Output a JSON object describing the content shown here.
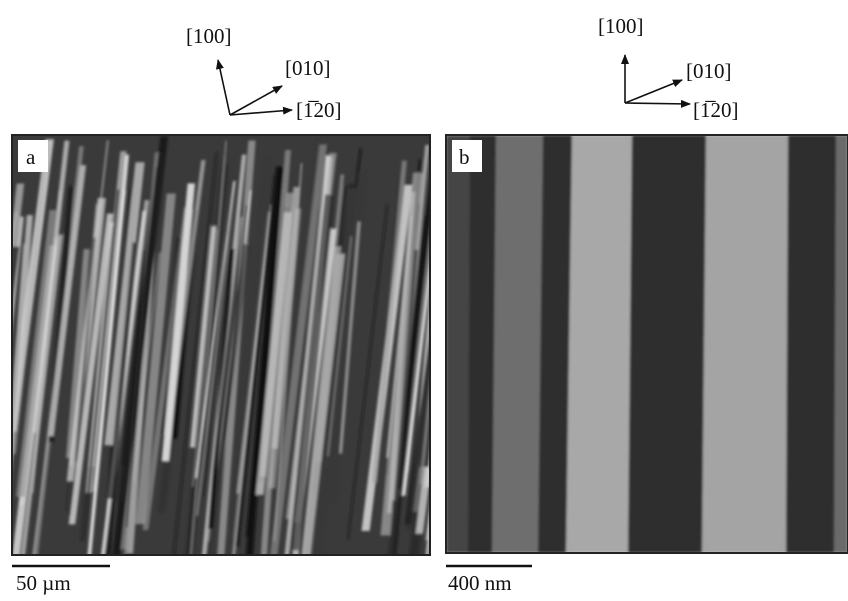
{
  "panels": [
    {
      "label": "a",
      "directions": [
        "[100]",
        "[010]",
        "[1̅20]"
      ],
      "scale_bar": "50 µm"
    },
    {
      "label": "b",
      "directions": [
        "[100]",
        "[010]",
        "[1̅20]"
      ],
      "scale_bar": "400 nm"
    }
  ]
}
